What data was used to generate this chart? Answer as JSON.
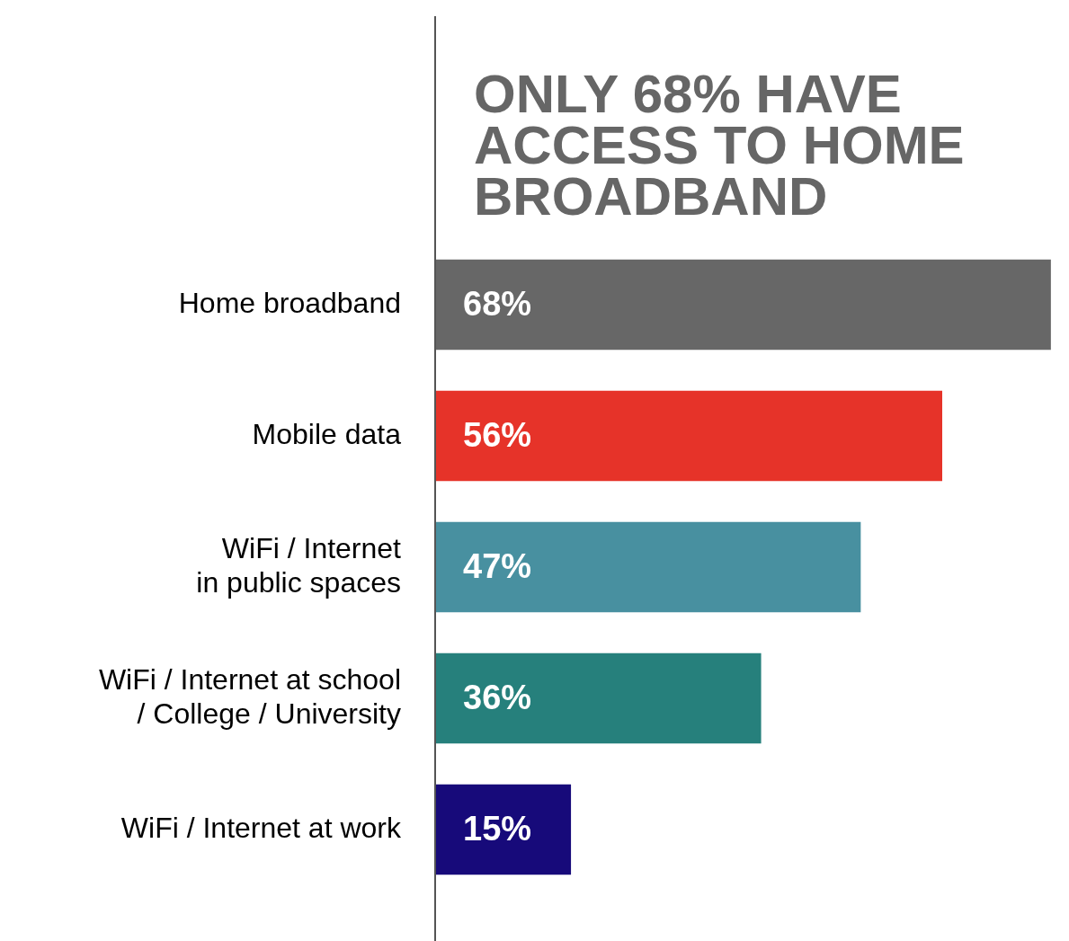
{
  "chart_data": {
    "type": "bar",
    "orientation": "horizontal",
    "title": "ONLY 68% HAVE ACCESS TO HOME BROADBAND",
    "categories": [
      "Home broadband",
      "Mobile data",
      "WiFi / Internet\nin public spaces",
      "WiFi / Internet at school\n/ College / University",
      "WiFi / Internet at work"
    ],
    "values": [
      68,
      56,
      47,
      36,
      15
    ],
    "colors": [
      "#676767",
      "#e63329",
      "#4890a0",
      "#26807c",
      "#170a7a"
    ],
    "value_labels": [
      "68%",
      "56%",
      "47%",
      "36%",
      "15%"
    ],
    "tick_labels": "y",
    "grid": false,
    "legend": false
  }
}
